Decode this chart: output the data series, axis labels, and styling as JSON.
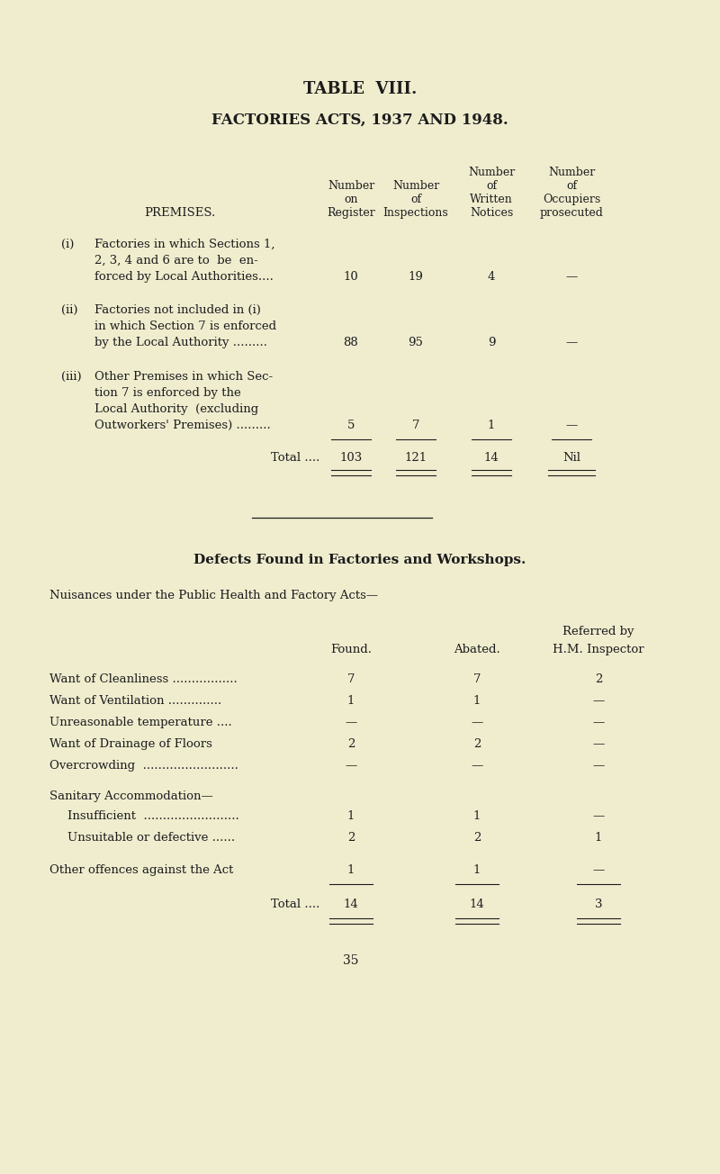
{
  "bg_color": "#f0edcf",
  "text_color": "#1c1c1c",
  "title1": "TABLE  VIII.",
  "title2": "FACTORIES ACTS, 1937 AND 1948.",
  "total_label": "Total ....",
  "total_data": [
    "103",
    "121",
    "14",
    "Nil"
  ],
  "section2_title": "Defects Found in Factories and Workshops.",
  "nuisances_intro": "Nuisances under the Public Health and Factory Acts—",
  "defects_total_label": "Total ....",
  "defects_total": [
    "14",
    "14",
    "3"
  ],
  "page_number": "35"
}
